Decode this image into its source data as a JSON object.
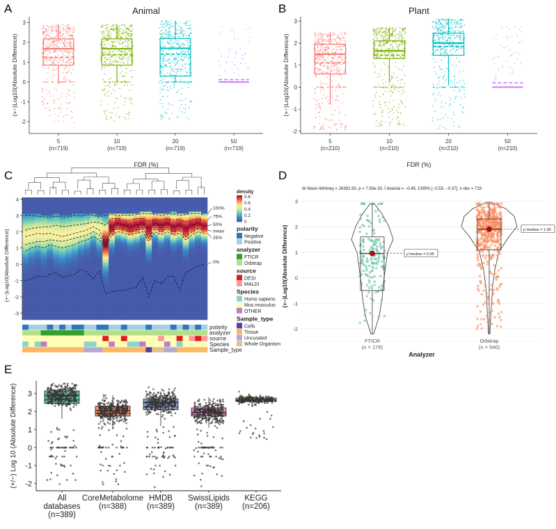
{
  "panel_letters": [
    "A",
    "B",
    "C",
    "D",
    "E"
  ],
  "chart_data": [
    {
      "id": "A",
      "type": "box",
      "title": "Animal",
      "xlabel": "FDR (%)",
      "ylabel": "(+−)Log10(Absolute Difference)",
      "ylim": [
        -2.6,
        3.3
      ],
      "yticks": [
        -2,
        -1,
        0,
        1,
        2,
        3
      ],
      "categories": [
        "5",
        "10",
        "20",
        "50"
      ],
      "counts": [
        "(n=719)",
        "(n=719)",
        "(n=719)",
        "(n=719)"
      ],
      "colors": [
        "#F8766D",
        "#7CAE00",
        "#00BFC4",
        "#C77CFF"
      ],
      "box": [
        {
          "q1": 0.85,
          "median": 1.68,
          "q3": 2.18,
          "mean": 1.25,
          "whisker_low": -0.1,
          "whisker_high": 2.9
        },
        {
          "q1": 0.85,
          "median": 1.68,
          "q3": 2.18,
          "mean": 1.38,
          "whisker_low": 0.0,
          "whisker_high": 2.9
        },
        {
          "q1": 0.3,
          "median": 1.7,
          "q3": 2.2,
          "mean": 1.4,
          "whisker_low": 0.0,
          "whisker_high": 3.1
        },
        {
          "q1": 0.0,
          "median": 0.0,
          "q3": 0.0,
          "mean": 0.12,
          "whisker_low": 0.0,
          "whisker_high": 0.0
        }
      ]
    },
    {
      "id": "B",
      "type": "box",
      "title": "Plant",
      "xlabel": "FDR (%)",
      "ylabel": "(+−)Log10(Absolute Difference)",
      "ylim": [
        -2.1,
        3.2
      ],
      "yticks": [
        -2,
        -1,
        0,
        1,
        2,
        3
      ],
      "categories": [
        "5",
        "10",
        "20",
        "50"
      ],
      "counts": [
        "(n=210)",
        "(n=210)",
        "(n=210)",
        "(n=210)"
      ],
      "colors": [
        "#F8766D",
        "#7CAE00",
        "#00BFC4",
        "#C77CFF"
      ],
      "box": [
        {
          "q1": 0.6,
          "median": 1.5,
          "q3": 1.95,
          "mean": 1.1,
          "whisker_low": -0.8,
          "whisker_high": 2.5
        },
        {
          "q1": 1.3,
          "median": 1.65,
          "q3": 2.1,
          "mean": 1.45,
          "whisker_low": 0.2,
          "whisker_high": 2.7
        },
        {
          "q1": 1.45,
          "median": 2.0,
          "q3": 2.45,
          "mean": 1.85,
          "whisker_low": 0.1,
          "whisker_high": 3.1
        },
        {
          "q1": 0.0,
          "median": 0.0,
          "q3": 0.0,
          "mean": 0.2,
          "whisker_low": 0.0,
          "whisker_high": 0.0
        }
      ]
    },
    {
      "id": "C",
      "type": "heatmap",
      "ylabel": "(+−)Log10(Absolute Difference)",
      "ylim": [
        -3.4,
        4.1
      ],
      "yticks": [
        -3,
        -2,
        -1,
        0,
        1,
        2,
        3,
        4
      ],
      "quantile_labels": [
        "100%",
        "75%",
        "50%",
        "mean",
        "25%",
        "0%"
      ],
      "annotation_rows": [
        "polarity",
        "analyzer",
        "source",
        "Species",
        "Sample_type"
      ],
      "legend": {
        "density": {
          "title": "density",
          "ticks": [
            "0.8",
            "0.6",
            "0.4",
            "0.2",
            "0"
          ]
        },
        "polarity": {
          "title": "polarity",
          "items": [
            {
              "label": "Negative",
              "color": "#2B78BA"
            },
            {
              "label": "Positive",
              "color": "#A6CEE3"
            }
          ]
        },
        "analyzer": {
          "title": "analyzer",
          "items": [
            {
              "label": "FTICR",
              "color": "#33A02C"
            },
            {
              "label": "Orbitrap",
              "color": "#B2DF8A"
            }
          ]
        },
        "source": {
          "title": "source",
          "items": [
            {
              "label": "DESI",
              "color": "#E31A1C"
            },
            {
              "label": "MALDI",
              "color": "#FB9A99"
            }
          ]
        },
        "Species": {
          "title": "Species",
          "items": [
            {
              "label": "Homo sapiens",
              "color": "#8DD3C7"
            },
            {
              "label": "Mus musculus",
              "color": "#FFFFB3"
            },
            {
              "label": "OTHER",
              "color": "#BC80BD"
            }
          ]
        },
        "Sample_type": {
          "title": "Sample_type",
          "items": [
            {
              "label": "Cells",
              "color": "#5E3C99"
            },
            {
              "label": "Tissue",
              "color": "#FDB863"
            },
            {
              "label": "Uncurated",
              "color": "#B2ABD2"
            },
            {
              "label": "Whole Organism",
              "color": "#E0C28E"
            }
          ]
        }
      },
      "columns": 30,
      "quantile_curves": {
        "q100": [
          3.0,
          3.0,
          2.95,
          2.9,
          2.9,
          2.95,
          2.9,
          2.9,
          3.0,
          2.95,
          3.05,
          3.0,
          2.9,
          3.0,
          3.05,
          3.0,
          3.0,
          3.0,
          3.05,
          3.1,
          3.1,
          3.05,
          3.0,
          3.05,
          3.1,
          3.0,
          3.05,
          3.1,
          3.1,
          3.05
        ],
        "q75": [
          2.1,
          2.2,
          2.25,
          2.3,
          2.3,
          2.4,
          2.3,
          2.35,
          2.4,
          2.45,
          2.5,
          2.6,
          2.55,
          2.4,
          2.8,
          2.8,
          2.7,
          2.7,
          2.8,
          2.8,
          2.65,
          2.75,
          2.7,
          2.8,
          2.7,
          2.75,
          2.6,
          2.7,
          2.8,
          2.7
        ],
        "q50": [
          1.7,
          1.8,
          1.9,
          1.85,
          1.9,
          1.8,
          1.7,
          1.8,
          1.9,
          2.0,
          2.1,
          2.3,
          2.1,
          1.3,
          2.3,
          2.5,
          2.4,
          2.3,
          2.4,
          2.5,
          2.2,
          2.5,
          2.4,
          2.5,
          2.3,
          2.4,
          2.2,
          2.4,
          2.5,
          2.35
        ],
        "mean": [
          1.2,
          1.3,
          1.4,
          1.4,
          1.5,
          1.45,
          1.4,
          1.5,
          1.6,
          1.7,
          1.8,
          2.0,
          1.8,
          1.1,
          2.1,
          2.2,
          2.1,
          2.0,
          2.1,
          2.2,
          1.6,
          2.2,
          2.0,
          2.2,
          2.0,
          2.1,
          1.7,
          2.0,
          2.2,
          2.1
        ],
        "q25": [
          0.8,
          1.0,
          1.1,
          1.0,
          1.2,
          1.1,
          1.0,
          1.1,
          1.2,
          1.4,
          1.5,
          1.7,
          1.5,
          1.0,
          1.8,
          2.0,
          1.9,
          1.8,
          1.9,
          2.0,
          1.4,
          2.0,
          1.8,
          2.0,
          1.8,
          1.9,
          1.5,
          1.8,
          2.0,
          1.9
        ],
        "q0": [
          -1.0,
          -0.9,
          -0.7,
          -0.8,
          -0.6,
          -0.5,
          -0.8,
          -0.7,
          -0.6,
          -0.3,
          -0.5,
          -0.9,
          -0.4,
          -1.8,
          -1.7,
          -1.6,
          -1.6,
          -1.5,
          -1.4,
          -0.8,
          -2.0,
          -1.0,
          -1.2,
          -0.8,
          -0.7,
          -1.6,
          -0.5,
          -0.3,
          -0.1,
          0.0
        ]
      }
    },
    {
      "id": "D",
      "type": "violin",
      "subtitle": "W Mann-Whitney = 26382.50, p = 7.93e-20, r̂ biserial = −0.45, CI95% [−0.53, −0.37], n obs = 719",
      "xlabel": "Analyzer",
      "ylabel": "(+−)Log10(Absolute Difference)",
      "ylim": [
        -2.3,
        3.2
      ],
      "yticks": [
        -2,
        -1,
        0,
        1,
        2,
        3
      ],
      "categories": [
        "FTICR",
        "Orbitrap"
      ],
      "counts": [
        "(n = 179)",
        "(n = 540)"
      ],
      "colors": [
        "#66C2A5",
        "#FC8D62"
      ],
      "median_labels": [
        "μ̂ median = 0.95",
        "μ̂ median = 1.90"
      ],
      "box": [
        {
          "q1": -0.5,
          "median": 0.95,
          "q3": 1.6,
          "whisker_low": -2.2,
          "whisker_high": 2.9
        },
        {
          "q1": 1.1,
          "median": 1.9,
          "q3": 2.3,
          "whisker_low": -2.2,
          "whisker_high": 2.9
        }
      ]
    },
    {
      "id": "E",
      "type": "box",
      "ylabel": "(+/−) Log 10 (Absolute Difference)",
      "ylim": [
        -2.4,
        3.7
      ],
      "yticks": [
        -2,
        -1,
        0,
        1,
        2,
        3
      ],
      "categories": [
        "All\ndatabases",
        "CoreMetabolome",
        "HMDB",
        "SwissLipids",
        "KEGG"
      ],
      "counts": [
        "(n=389)",
        "(n=388)",
        "(n=389)",
        "(n=389)",
        "(n=206)"
      ],
      "colors": [
        "#66C2A5",
        "#FC8D62",
        "#8DA0CB",
        "#E78AC3",
        "#A6D854"
      ],
      "box": [
        {
          "q1": 2.45,
          "median": 2.9,
          "q3": 3.15,
          "mean": 2.65,
          "whisker_low": 1.6,
          "whisker_high": 3.5
        },
        {
          "q1": 1.75,
          "median": 2.05,
          "q3": 2.3,
          "mean": 1.9,
          "whisker_low": 1.0,
          "whisker_high": 2.9
        },
        {
          "q1": 2.1,
          "median": 2.5,
          "q3": 2.7,
          "mean": 2.25,
          "whisker_low": 1.2,
          "whisker_high": 3.1
        },
        {
          "q1": 1.75,
          "median": 1.95,
          "q3": 2.2,
          "mean": 1.85,
          "whisker_low": 1.1,
          "whisker_high": 2.8
        },
        {
          "q1": 2.55,
          "median": 2.65,
          "q3": 2.75,
          "mean": 2.6,
          "whisker_low": 2.3,
          "whisker_high": 2.9
        }
      ]
    }
  ]
}
